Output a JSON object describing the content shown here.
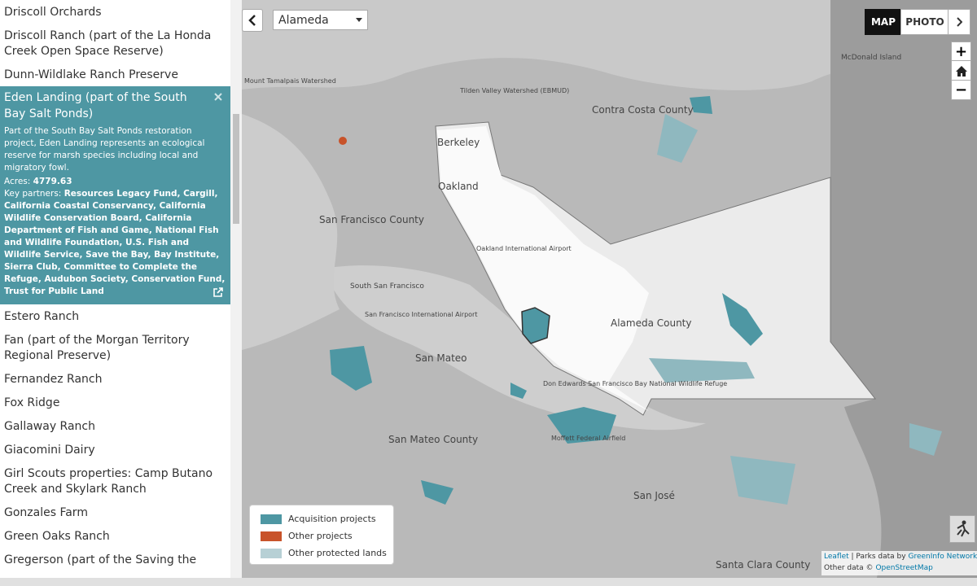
{
  "sidebar": {
    "items_before": [
      "Driscoll Orchards",
      "Driscoll Ranch (part of the La Honda Creek Open Space Reserve)",
      "Dunn-Wildlake Ranch Preserve"
    ],
    "selected": {
      "title": "Eden Landing (part of the South Bay Salt Ponds)",
      "description": "Part of the South Bay Salt Ponds restoration project, Eden Landing represents an ecological reserve for marsh species including local and migratory fowl.",
      "acres_label": "Acres:",
      "acres": 4779.63,
      "partners_label": "Key partners:",
      "partners": "Resources Legacy Fund, Cargill, California Coastal Conservancy, California Wildlife Conservation Board, California Department of Fish and Game, National Fish and Wildlife Foundation, U.S. Fish and Wildlife Service, Save the Bay, Bay Institute, Sierra Club, Committee to Complete the Refuge, Audubon Society, Conservation Fund, Trust for Public Land"
    },
    "items_after": [
      "Estero Ranch",
      "Fan (part of the Morgan Territory Regional Preserve)",
      "Fernandez Ranch",
      "Fox Ridge",
      "Gallaway Ranch",
      "Giacomini Dairy",
      "Girl Scouts properties: Camp Butano Creek and Skylark Ranch",
      "Gonzales Farm",
      "Green Oaks Ranch",
      "Gregerson (part of the Saving the"
    ]
  },
  "map": {
    "county_select": "Alameda",
    "basemap_buttons": [
      "MAP",
      "PHOTO"
    ],
    "zoom_in": "+",
    "zoom_out": "−",
    "labels": [
      "Contra Costa County",
      "Berkeley",
      "Oakland",
      "San Francisco County",
      "Oakland International Airport",
      "South San Francisco",
      "San Francisco International Airport",
      "Alameda County",
      "San Mateo",
      "Don Edwards San Francisco Bay National Wildlife Refuge",
      "San Mateo County",
      "Moffett Federal Airfield",
      "San José",
      "Santa Clara County",
      "McDonald Island",
      "Mount Tamalpais Watershed",
      "Tilden Valley Watershed (EBMUD)"
    ],
    "legend": [
      {
        "name": "Acquisition projects",
        "color": "#4e97a3"
      },
      {
        "name": "Other projects",
        "color": "#c8532a"
      },
      {
        "name": "Other protected lands",
        "color": "#b7d0d5"
      }
    ],
    "attribution": {
      "leaflet": "Leaflet",
      "parks_text": "| Parks data by",
      "greeninfo": "GreenInfo Network",
      "other_text": "Other data ©",
      "osm": "OpenStreetMap"
    }
  }
}
